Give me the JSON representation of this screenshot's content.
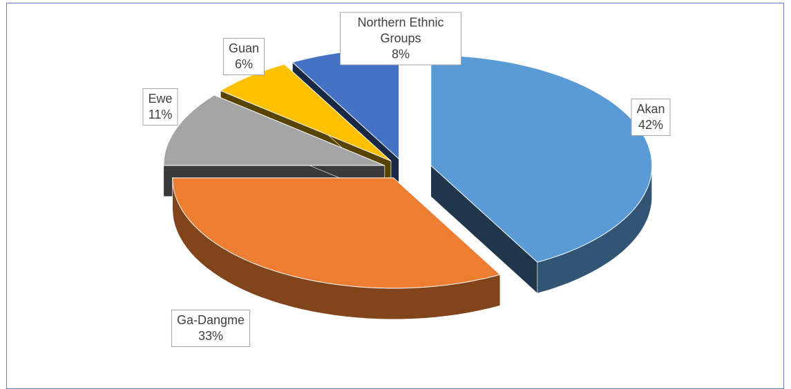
{
  "chart_data": {
    "type": "pie",
    "categories": [
      "Akan",
      "Ga-Dangme",
      "Ewe",
      "Guan",
      "Northern Ethnic Groups"
    ],
    "values": [
      42,
      33,
      11,
      6,
      8
    ],
    "value_labels": [
      "42%",
      "33%",
      "11%",
      "6%",
      "8%"
    ],
    "colors": [
      "#5b9bd5",
      "#ed7d31",
      "#a5a5a5",
      "#ffc000",
      "#4472c4"
    ]
  }
}
